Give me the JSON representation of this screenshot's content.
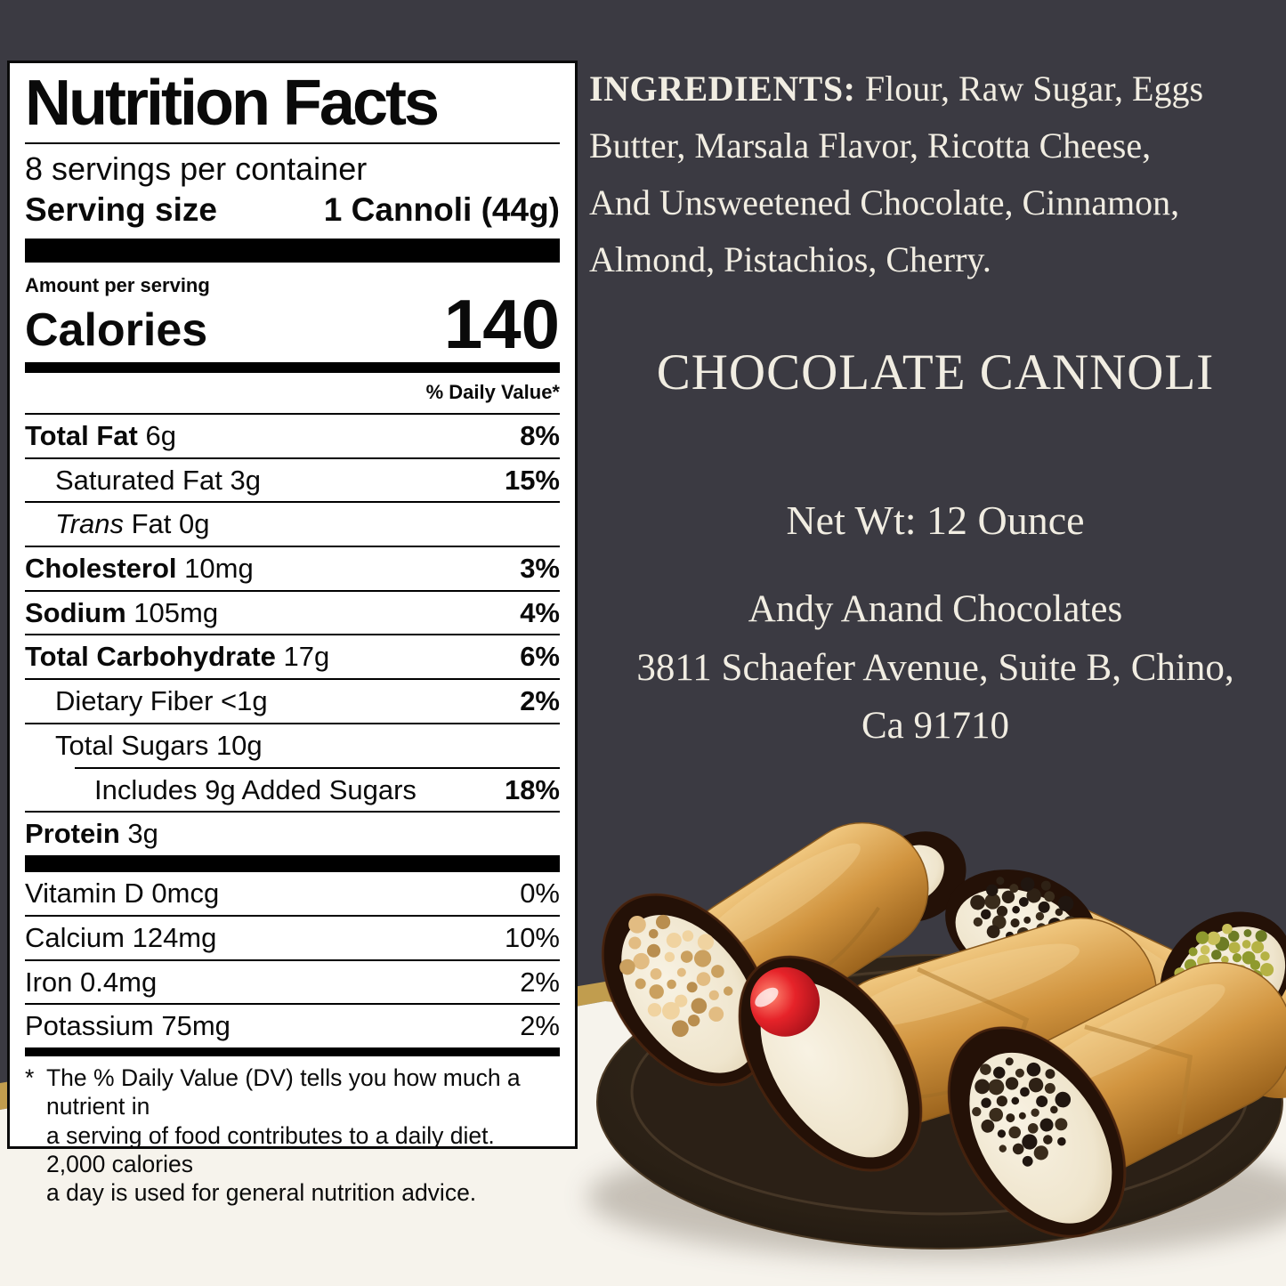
{
  "palette": {
    "background_charcoal": "#3b3a42",
    "gold_band": "#c19d4e",
    "surface_white": "#f6f3ec",
    "label_text": "#0a0a0a",
    "ivory_text": "#f1ede2",
    "plate_brown": "#2b2016",
    "shell_golden": "#cf9146",
    "cream": "#f2e9d6",
    "cherry_red": "#dd2128",
    "pistachio_green": "#9aa23a",
    "chocolate": "#241107"
  },
  "nutrition_label": {
    "title": "Nutrition Facts",
    "servings_per_container": "8 servings per container",
    "serving_size_label": "Serving size",
    "serving_size_value": "1 Cannoli (44g)",
    "amount_per_serving": "Amount per serving",
    "calories_label": "Calories",
    "calories_value": "140",
    "daily_value_header": "% Daily Value*",
    "rows": [
      {
        "name": "Total Fat",
        "bold_name": true,
        "amount": "6g",
        "dv": "8%",
        "indent": 0
      },
      {
        "name": "Saturated Fat",
        "bold_name": false,
        "amount": "3g",
        "dv": "15%",
        "indent": 1
      },
      {
        "name": "Trans Fat",
        "bold_name": false,
        "italic_first_word": true,
        "amount": "0g",
        "dv": "",
        "indent": 1
      },
      {
        "name": "Cholesterol",
        "bold_name": true,
        "amount": "10mg",
        "dv": "3%",
        "indent": 0
      },
      {
        "name": "Sodium",
        "bold_name": true,
        "amount": "105mg",
        "dv": "4%",
        "indent": 0
      },
      {
        "name": "Total Carbohydrate",
        "bold_name": true,
        "amount": "17g",
        "dv": "6%",
        "indent": 0
      },
      {
        "name": "Dietary Fiber",
        "bold_name": false,
        "amount": "<1g",
        "dv": "2%",
        "indent": 1
      },
      {
        "name": "Total Sugars",
        "bold_name": false,
        "amount": "10g",
        "dv": "",
        "indent": 1
      },
      {
        "name": "Includes 9g Added Sugars",
        "bold_name": false,
        "amount": "",
        "dv": "18%",
        "indent": 2
      },
      {
        "name": "Protein",
        "bold_name": true,
        "amount": "3g",
        "dv": "",
        "indent": 0
      }
    ],
    "vitamins": [
      {
        "name": "Vitamin D",
        "amount": "0mcg",
        "dv": "0%"
      },
      {
        "name": "Calcium",
        "amount": "124mg",
        "dv": "10%"
      },
      {
        "name": "Iron",
        "amount": "0.4mg",
        "dv": "2%"
      },
      {
        "name": "Potassium",
        "amount": "75mg",
        "dv": "2%"
      }
    ],
    "footnote": {
      "marker": "*",
      "lines": [
        "The % Daily Value (DV) tells you how much a nutrient in",
        "a serving of food contributes to a daily diet. 2,000 calories",
        "a day is used for general nutrition advice."
      ]
    }
  },
  "right_panel": {
    "ingredients_label": "INGREDIENTS:",
    "ingredients_lines": [
      "Flour, Raw Sugar, Eggs",
      "Butter, Marsala Flavor, Ricotta Cheese,",
      "And Unsweetened Chocolate, Cinnamon,",
      "Almond, Pistachios, Cherry."
    ],
    "product_name": "CHOCOLATE CANNOLI",
    "net_weight": "Net Wt: 12 Ounce",
    "company": "Andy Anand Chocolates",
    "address_line1": "3811 Schaefer Avenue, Suite B, Chino,",
    "address_line2": "Ca 91710"
  },
  "photo": {
    "alt": "Four cannoli with chocolate-dipped ends and ricotta cream filling on a dark brown plate",
    "toppings": [
      "chopped nuts",
      "maraschino cherry",
      "chocolate crumbs",
      "pistachio crumbs"
    ]
  }
}
